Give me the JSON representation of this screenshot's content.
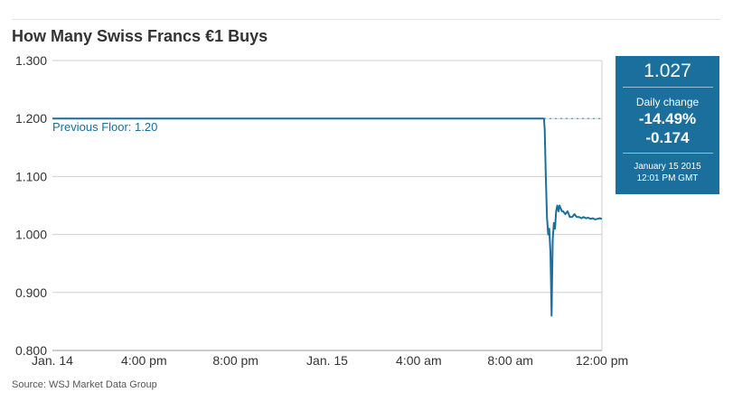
{
  "chart_data": {
    "type": "line",
    "title": "How Many Swiss Francs €1 Buys",
    "source": "Source: WSJ Market Data Group",
    "ylim": [
      0.8,
      1.3
    ],
    "y_ticks": [
      "1.300",
      "1.200",
      "1.100",
      "1.000",
      "0.900",
      "0.800"
    ],
    "y_tick_values": [
      1.3,
      1.2,
      1.1,
      1.0,
      0.9,
      0.8
    ],
    "x_range_hours": [
      0,
      24
    ],
    "x_ticks": [
      "Jan. 14",
      "4:00 pm",
      "8:00 pm",
      "Jan. 15",
      "4:00 am",
      "8:00 am",
      "12:00 pm"
    ],
    "x_tick_hours": [
      0,
      4,
      8,
      12,
      16,
      20,
      24
    ],
    "grid": "horizontal",
    "series": [
      {
        "color": "#1b6f9c",
        "x": [
          0,
          21.47,
          21.5,
          21.55,
          21.6,
          21.65,
          21.7,
          21.75,
          21.8,
          21.85,
          21.9,
          21.95,
          22.0,
          22.05,
          22.1,
          22.15,
          22.2,
          22.25,
          22.3,
          22.4,
          22.5,
          22.6,
          22.7,
          22.8,
          22.9,
          23.0,
          23.1,
          23.2,
          23.3,
          23.4,
          23.5,
          23.6,
          23.7,
          23.8,
          23.9,
          24.0
        ],
        "y": [
          1.2,
          1.2,
          1.18,
          1.1,
          1.03,
          1.0,
          1.01,
          0.97,
          0.86,
          0.99,
          1.02,
          1.01,
          1.04,
          1.05,
          1.04,
          1.05,
          1.045,
          1.04,
          1.04,
          1.035,
          1.04,
          1.03,
          1.03,
          1.035,
          1.03,
          1.03,
          1.028,
          1.03,
          1.028,
          1.029,
          1.027,
          1.028,
          1.026,
          1.027,
          1.028,
          1.027
        ]
      }
    ],
    "annotations": {
      "floor_label": "Previous Floor: 1.20",
      "floor_value": 1.2
    },
    "callout": {
      "price": "1.027",
      "daily_change_label": "Daily change",
      "daily_change_pct": "-14.49%",
      "daily_change_abs": "-0.174",
      "date": "January 15 2015",
      "time": "12:01 PM GMT"
    }
  }
}
